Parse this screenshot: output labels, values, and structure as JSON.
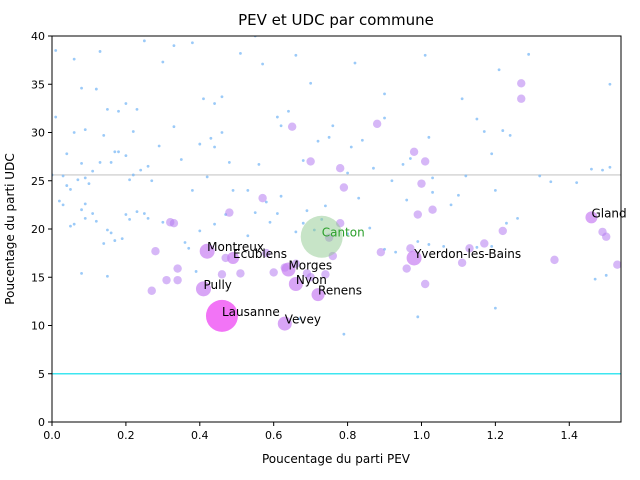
{
  "chart_data": {
    "type": "scatter",
    "title": "PEV et UDC par commune",
    "xlabel": "Poucentage du parti PEV",
    "ylabel": "Poucentage du parti UDC",
    "xlim": [
      0,
      1.54
    ],
    "ylim": [
      0,
      40
    ],
    "xticks": [
      "0.0",
      "0.2",
      "0.4",
      "0.6",
      "0.8",
      "1.0",
      "1.2",
      "1.4"
    ],
    "yticks": [
      "0",
      "5",
      "10",
      "15",
      "20",
      "25",
      "30",
      "35",
      "40"
    ],
    "xtick_values": [
      0,
      0.2,
      0.4,
      0.6,
      0.8,
      1.0,
      1.2,
      1.4
    ],
    "ytick_values": [
      0,
      5,
      10,
      15,
      20,
      25,
      30,
      35,
      40
    ],
    "hlines": [
      {
        "y": 25.6,
        "color": "#c8c8c8"
      },
      {
        "y": 5.0,
        "color": "#3ee6f0"
      }
    ],
    "canton": {
      "label": "Canton",
      "x": 0.73,
      "y": 19.2,
      "color": "#2ca02c"
    },
    "labeled_points": [
      {
        "label": "Lausanne",
        "x": 0.46,
        "y": 11.0,
        "size": 30
      },
      {
        "label": "Vevey",
        "x": 0.63,
        "y": 10.2,
        "size": 12
      },
      {
        "label": "Renens",
        "x": 0.72,
        "y": 13.2,
        "size": 11
      },
      {
        "label": "Nyon",
        "x": 0.66,
        "y": 14.3,
        "size": 12
      },
      {
        "label": "Morges",
        "x": 0.64,
        "y": 15.8,
        "size": 12
      },
      {
        "label": "Pully",
        "x": 0.41,
        "y": 13.8,
        "size": 13
      },
      {
        "label": "Ecublens",
        "x": 0.49,
        "y": 17.0,
        "size": 10
      },
      {
        "label": "Montreux",
        "x": 0.42,
        "y": 17.7,
        "size": 13
      },
      {
        "label": "Yverdon-les-Bains",
        "x": 0.98,
        "y": 17.0,
        "size": 13
      },
      {
        "label": "Gland",
        "x": 1.46,
        "y": 21.2,
        "size": 10
      }
    ],
    "medium_points": [
      [
        0.27,
        13.6
      ],
      [
        0.31,
        14.7
      ],
      [
        0.34,
        14.7
      ],
      [
        0.34,
        15.9
      ],
      [
        0.28,
        17.7
      ],
      [
        0.33,
        20.6
      ],
      [
        0.32,
        20.7
      ],
      [
        0.51,
        15.4
      ],
      [
        0.46,
        15.3
      ],
      [
        0.47,
        17.0
      ],
      [
        0.48,
        21.7
      ],
      [
        0.57,
        23.2
      ],
      [
        0.58,
        17.5
      ],
      [
        0.6,
        15.5
      ],
      [
        0.63,
        16.0
      ],
      [
        0.66,
        16.4
      ],
      [
        0.69,
        15.4
      ],
      [
        0.7,
        15.0
      ],
      [
        0.74,
        15.3
      ],
      [
        0.75,
        19.1
      ],
      [
        0.76,
        17.2
      ],
      [
        0.78,
        20.6
      ],
      [
        0.78,
        26.3
      ],
      [
        0.79,
        24.3
      ],
      [
        0.88,
        30.9
      ],
      [
        0.89,
        17.6
      ],
      [
        0.96,
        15.9
      ],
      [
        0.97,
        18.0
      ],
      [
        0.99,
        21.5
      ],
      [
        1.01,
        27.0
      ],
      [
        1.01,
        14.3
      ],
      [
        1.03,
        22.0
      ],
      [
        1.11,
        16.5
      ],
      [
        1.13,
        18.0
      ],
      [
        1.17,
        18.5
      ],
      [
        1.22,
        19.8
      ],
      [
        1.27,
        33.5
      ],
      [
        1.27,
        35.1
      ],
      [
        1.36,
        16.8
      ],
      [
        1.49,
        19.7
      ],
      [
        1.5,
        19.2
      ],
      [
        1.53,
        16.3
      ],
      [
        0.98,
        28.0
      ],
      [
        1.0,
        24.7
      ],
      [
        0.7,
        27.0
      ],
      [
        0.65,
        30.6
      ]
    ],
    "small_points": [
      [
        0.02,
        22.9
      ],
      [
        0.03,
        22.5
      ],
      [
        0.05,
        20.3
      ],
      [
        0.06,
        20.5
      ],
      [
        0.08,
        22.0
      ],
      [
        0.09,
        22.6
      ],
      [
        0.09,
        21.1
      ],
      [
        0.11,
        21.6
      ],
      [
        0.12,
        20.8
      ],
      [
        0.14,
        18.5
      ],
      [
        0.15,
        19.9
      ],
      [
        0.17,
        18.8
      ],
      [
        0.19,
        19.0
      ],
      [
        0.2,
        21.5
      ],
      [
        0.21,
        21.0
      ],
      [
        0.23,
        21.8
      ],
      [
        0.25,
        21.6
      ],
      [
        0.26,
        21.1
      ],
      [
        0.3,
        20.7
      ],
      [
        0.36,
        18.6
      ],
      [
        0.37,
        18.0
      ],
      [
        0.4,
        19.8
      ],
      [
        0.44,
        20.5
      ],
      [
        0.53,
        19.3
      ],
      [
        0.55,
        21.7
      ],
      [
        0.59,
        20.7
      ],
      [
        0.61,
        21.6
      ],
      [
        0.66,
        19.7
      ],
      [
        0.68,
        20.6
      ],
      [
        0.71,
        19.9
      ],
      [
        0.73,
        21.0
      ],
      [
        0.8,
        19.5
      ],
      [
        0.86,
        20.1
      ],
      [
        0.9,
        17.9
      ],
      [
        0.93,
        17.6
      ],
      [
        0.99,
        18.7
      ],
      [
        1.02,
        18.4
      ],
      [
        1.06,
        18.2
      ],
      [
        1.15,
        18.1
      ],
      [
        1.19,
        18.2
      ],
      [
        1.23,
        20.6
      ],
      [
        1.26,
        21.1
      ],
      [
        0.03,
        25.5
      ],
      [
        0.05,
        24.1
      ],
      [
        0.07,
        25.1
      ],
      [
        0.09,
        25.3
      ],
      [
        0.1,
        24.7
      ],
      [
        0.11,
        26.0
      ],
      [
        0.13,
        26.9
      ],
      [
        0.16,
        26.9
      ],
      [
        0.18,
        28.0
      ],
      [
        0.2,
        27.6
      ],
      [
        0.21,
        25.1
      ],
      [
        0.22,
        25.6
      ],
      [
        0.24,
        26.1
      ],
      [
        0.26,
        26.5
      ],
      [
        0.27,
        25.0
      ],
      [
        0.29,
        28.6
      ],
      [
        0.33,
        30.6
      ],
      [
        0.4,
        28.8
      ],
      [
        0.43,
        29.4
      ],
      [
        0.44,
        28.5
      ],
      [
        0.46,
        30.0
      ],
      [
        0.48,
        26.9
      ],
      [
        0.49,
        24.0
      ],
      [
        0.53,
        24.0
      ],
      [
        0.56,
        26.7
      ],
      [
        0.61,
        31.6
      ],
      [
        0.62,
        30.7
      ],
      [
        0.64,
        32.2
      ],
      [
        0.68,
        27.1
      ],
      [
        0.72,
        29.1
      ],
      [
        0.75,
        29.5
      ],
      [
        0.76,
        30.7
      ],
      [
        0.8,
        25.8
      ],
      [
        0.81,
        28.5
      ],
      [
        0.84,
        29.2
      ],
      [
        0.87,
        26.3
      ],
      [
        0.9,
        31.5
      ],
      [
        0.92,
        25.0
      ],
      [
        0.95,
        26.7
      ],
      [
        0.97,
        27.3
      ],
      [
        1.02,
        29.5
      ],
      [
        1.03,
        25.3
      ],
      [
        1.1,
        23.5
      ],
      [
        1.12,
        25.5
      ],
      [
        1.15,
        31.4
      ],
      [
        1.17,
        30.1
      ],
      [
        1.19,
        27.8
      ],
      [
        1.22,
        30.2
      ],
      [
        1.24,
        29.7
      ],
      [
        1.32,
        25.5
      ],
      [
        1.35,
        24.9
      ],
      [
        1.42,
        24.8
      ],
      [
        1.46,
        26.2
      ],
      [
        1.51,
        26.4
      ],
      [
        0.01,
        38.5
      ],
      [
        0.06,
        37.6
      ],
      [
        0.08,
        34.6
      ],
      [
        0.12,
        34.5
      ],
      [
        0.13,
        38.4
      ],
      [
        0.15,
        32.4
      ],
      [
        0.18,
        32.2
      ],
      [
        0.2,
        33.0
      ],
      [
        0.23,
        32.4
      ],
      [
        0.25,
        39.5
      ],
      [
        0.3,
        37.3
      ],
      [
        0.33,
        39.0
      ],
      [
        0.38,
        39.3
      ],
      [
        0.41,
        33.5
      ],
      [
        0.44,
        33.0
      ],
      [
        0.46,
        33.7
      ],
      [
        0.51,
        38.2
      ],
      [
        0.55,
        40.0
      ],
      [
        0.57,
        37.1
      ],
      [
        0.66,
        38.0
      ],
      [
        0.7,
        35.1
      ],
      [
        0.82,
        37.2
      ],
      [
        0.9,
        34.0
      ],
      [
        1.01,
        38.0
      ],
      [
        1.11,
        33.5
      ],
      [
        1.21,
        36.5
      ],
      [
        1.29,
        38.1
      ],
      [
        1.49,
        26.1
      ],
      [
        1.51,
        35.0
      ],
      [
        0.01,
        31.6
      ],
      [
        0.04,
        27.8
      ],
      [
        0.06,
        30.0
      ],
      [
        0.09,
        30.3
      ],
      [
        0.14,
        29.7
      ],
      [
        0.17,
        28.0
      ],
      [
        0.22,
        30.1
      ],
      [
        0.35,
        27.2
      ],
      [
        0.38,
        24.0
      ],
      [
        0.42,
        25.4
      ],
      [
        0.47,
        21.5
      ],
      [
        0.58,
        22.8
      ],
      [
        0.62,
        23.4
      ],
      [
        0.69,
        21.9
      ],
      [
        0.74,
        22.4
      ],
      [
        0.83,
        23.2
      ],
      [
        0.96,
        23.0
      ],
      [
        1.03,
        23.8
      ],
      [
        1.08,
        22.5
      ],
      [
        1.2,
        24.0
      ],
      [
        0.0,
        25.6
      ],
      [
        0.04,
        24.5
      ],
      [
        0.08,
        26.8
      ],
      [
        0.16,
        19.6
      ],
      [
        0.15,
        15.1
      ],
      [
        0.08,
        15.4
      ],
      [
        0.39,
        15.6
      ],
      [
        0.67,
        10.7
      ],
      [
        0.79,
        9.1
      ],
      [
        0.99,
        10.9
      ],
      [
        1.2,
        11.8
      ],
      [
        1.47,
        14.8
      ],
      [
        1.5,
        15.2
      ]
    ]
  }
}
